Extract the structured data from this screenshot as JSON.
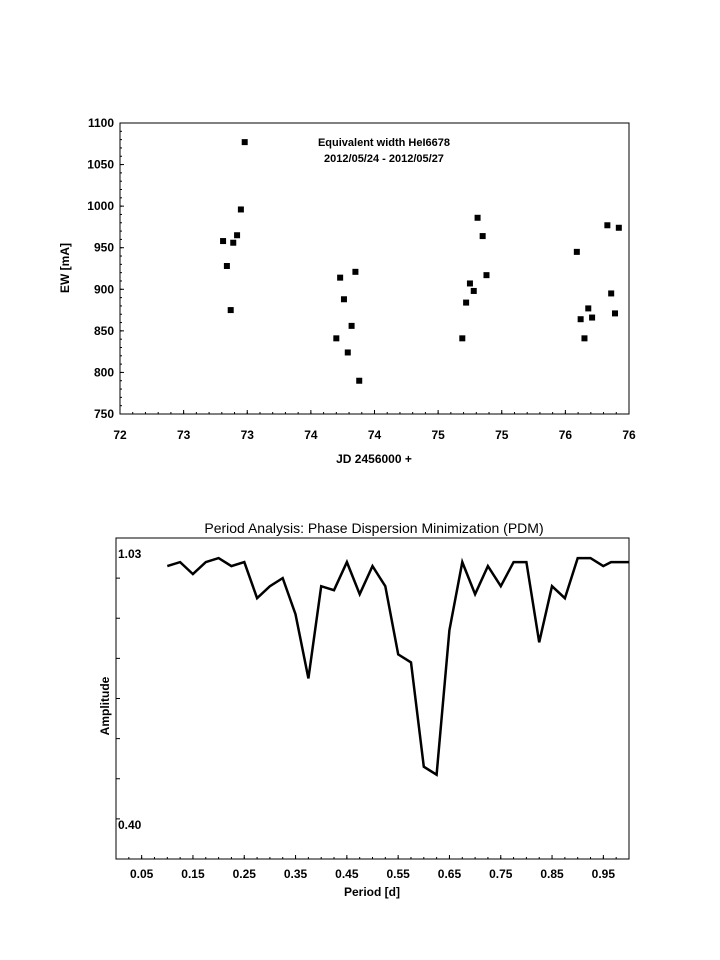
{
  "chart_data": [
    {
      "type": "scatter",
      "title": "Equivalent width HeI6678",
      "subtitle": "2012/05/24 - 2012/05/27",
      "xlabel": "JD 2456000 +",
      "ylabel": "EW [mA]",
      "xlim": [
        72,
        76
      ],
      "ylim": [
        750,
        1100
      ],
      "x_tick_labels": [
        "72",
        "73",
        "73",
        "74",
        "74",
        "75",
        "75",
        "76",
        "76"
      ],
      "y_ticks": [
        750,
        800,
        850,
        900,
        950,
        1000,
        1050,
        1100
      ],
      "grid": false,
      "points": [
        {
          "x": 72.81,
          "y": 958
        },
        {
          "x": 72.84,
          "y": 928
        },
        {
          "x": 72.87,
          "y": 875
        },
        {
          "x": 72.89,
          "y": 956
        },
        {
          "x": 72.92,
          "y": 965
        },
        {
          "x": 72.95,
          "y": 996
        },
        {
          "x": 72.98,
          "y": 1077
        },
        {
          "x": 73.7,
          "y": 841
        },
        {
          "x": 73.73,
          "y": 914
        },
        {
          "x": 73.76,
          "y": 888
        },
        {
          "x": 73.79,
          "y": 824
        },
        {
          "x": 73.82,
          "y": 856
        },
        {
          "x": 73.85,
          "y": 921
        },
        {
          "x": 73.88,
          "y": 790
        },
        {
          "x": 74.69,
          "y": 841
        },
        {
          "x": 74.72,
          "y": 884
        },
        {
          "x": 74.75,
          "y": 907
        },
        {
          "x": 74.78,
          "y": 898
        },
        {
          "x": 74.81,
          "y": 986
        },
        {
          "x": 74.85,
          "y": 964
        },
        {
          "x": 74.88,
          "y": 917
        },
        {
          "x": 75.59,
          "y": 945
        },
        {
          "x": 75.62,
          "y": 864
        },
        {
          "x": 75.65,
          "y": 841
        },
        {
          "x": 75.68,
          "y": 877
        },
        {
          "x": 75.71,
          "y": 866
        },
        {
          "x": 75.83,
          "y": 977
        },
        {
          "x": 75.86,
          "y": 895
        },
        {
          "x": 75.89,
          "y": 871
        },
        {
          "x": 75.92,
          "y": 974
        }
      ]
    },
    {
      "type": "line",
      "title": "Period Analysis: Phase Dispersion Minimization (PDM)",
      "xlabel": "Period [d]",
      "ylabel": "Amplitude",
      "xlim": [
        0.0,
        1.0
      ],
      "ylim": [
        0.3,
        1.1
      ],
      "x_ticks": [
        0.05,
        0.15,
        0.25,
        0.35,
        0.45,
        0.55,
        0.65,
        0.75,
        0.85,
        0.95
      ],
      "y_tick_labels": [
        "1.03",
        "0.40"
      ],
      "series": [
        {
          "x": [
            0.1,
            0.125,
            0.15,
            0.175,
            0.2,
            0.225,
            0.25,
            0.275,
            0.3,
            0.325,
            0.35,
            0.375,
            0.4,
            0.425,
            0.45,
            0.475,
            0.5,
            0.525,
            0.55,
            0.575,
            0.6,
            0.625,
            0.65,
            0.675,
            0.7,
            0.725,
            0.75,
            0.775,
            0.8,
            0.825,
            0.85,
            0.875,
            0.9,
            0.925,
            0.95,
            0.965,
            0.98,
            1.0
          ],
          "values": [
            1.03,
            1.04,
            1.01,
            1.04,
            1.05,
            1.03,
            1.04,
            0.95,
            0.98,
            1.0,
            0.91,
            0.75,
            0.98,
            0.97,
            1.04,
            0.96,
            1.03,
            0.98,
            0.81,
            0.79,
            0.53,
            0.51,
            0.87,
            1.04,
            0.96,
            1.03,
            0.98,
            1.04,
            1.04,
            0.84,
            0.98,
            0.95,
            1.05,
            1.05,
            1.03,
            1.04,
            1.04,
            1.04
          ]
        }
      ]
    }
  ]
}
